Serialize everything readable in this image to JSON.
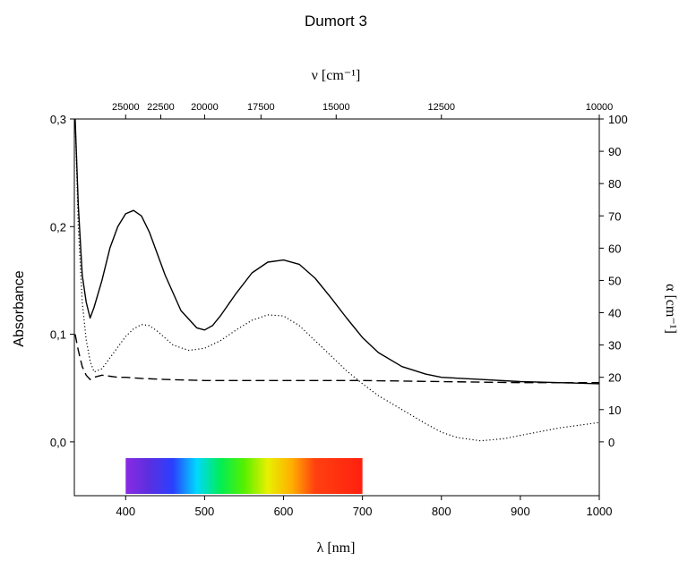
{
  "chart_data": {
    "type": "line",
    "title": "Dumort 3",
    "xlabel": "λ [nm]",
    "top_xlabel": "ν [cm⁻¹]",
    "ylabel_left": "Absorbance",
    "ylabel_right": "α [cm⁻¹]",
    "xlim": [
      335,
      1000
    ],
    "ylim_left": [
      -0.05,
      0.3
    ],
    "ylim_right": [
      0,
      100
    ],
    "x_ticks": [
      "400",
      "500",
      "600",
      "700",
      "800",
      "900",
      "1000"
    ],
    "x_tick_values": [
      400,
      500,
      600,
      700,
      800,
      900,
      1000
    ],
    "left_ticks": [
      "0,0",
      "0,1",
      "0,2",
      "0,3"
    ],
    "left_tick_values": [
      0.0,
      0.1,
      0.2,
      0.3
    ],
    "right_ticks": [
      "0",
      "10",
      "20",
      "30",
      "40",
      "50",
      "60",
      "70",
      "80",
      "90",
      "100"
    ],
    "right_tick_values": [
      0,
      10,
      20,
      30,
      40,
      50,
      60,
      70,
      80,
      90,
      100
    ],
    "top_ticks": [
      "25000",
      "22500",
      "20000",
      "17500",
      "15000",
      "12500",
      "10000"
    ],
    "top_tick_values": [
      25000,
      22500,
      20000,
      17500,
      15000,
      12500,
      10000
    ],
    "spectrum_band": {
      "from_nm": 400,
      "to_nm": 700
    },
    "series": [
      {
        "style": "solid",
        "x": [
          336,
          340,
          345,
          350,
          355,
          360,
          370,
          380,
          390,
          400,
          410,
          420,
          430,
          450,
          470,
          490,
          500,
          510,
          520,
          540,
          560,
          580,
          600,
          620,
          640,
          660,
          680,
          700,
          720,
          750,
          780,
          800,
          850,
          900,
          950,
          1000
        ],
        "y": [
          0.3,
          0.22,
          0.155,
          0.13,
          0.115,
          0.125,
          0.15,
          0.18,
          0.2,
          0.212,
          0.215,
          0.21,
          0.195,
          0.155,
          0.122,
          0.106,
          0.104,
          0.108,
          0.117,
          0.138,
          0.157,
          0.167,
          0.169,
          0.165,
          0.152,
          0.134,
          0.115,
          0.097,
          0.083,
          0.07,
          0.063,
          0.06,
          0.058,
          0.056,
          0.055,
          0.054
        ]
      },
      {
        "style": "dotted",
        "x": [
          336,
          340,
          345,
          350,
          355,
          360,
          370,
          380,
          390,
          400,
          410,
          420,
          430,
          440,
          460,
          480,
          500,
          520,
          540,
          560,
          580,
          600,
          620,
          640,
          660,
          680,
          700,
          720,
          750,
          780,
          800,
          820,
          850,
          880,
          900,
          950,
          1000
        ],
        "y": [
          0.3,
          0.2,
          0.13,
          0.095,
          0.075,
          0.065,
          0.068,
          0.078,
          0.088,
          0.098,
          0.105,
          0.109,
          0.108,
          0.103,
          0.09,
          0.085,
          0.087,
          0.094,
          0.104,
          0.113,
          0.118,
          0.117,
          0.108,
          0.094,
          0.08,
          0.066,
          0.054,
          0.043,
          0.03,
          0.017,
          0.009,
          0.004,
          0.001,
          0.003,
          0.006,
          0.013,
          0.018
        ]
      },
      {
        "style": "dashed",
        "x": [
          336,
          340,
          345,
          350,
          355,
          360,
          370,
          380,
          390,
          400,
          420,
          450,
          500,
          550,
          600,
          650,
          700,
          800,
          900,
          1000
        ],
        "y": [
          0.1,
          0.085,
          0.07,
          0.062,
          0.058,
          0.06,
          0.062,
          0.061,
          0.06,
          0.06,
          0.059,
          0.058,
          0.057,
          0.057,
          0.057,
          0.057,
          0.057,
          0.056,
          0.055,
          0.055
        ]
      }
    ]
  }
}
